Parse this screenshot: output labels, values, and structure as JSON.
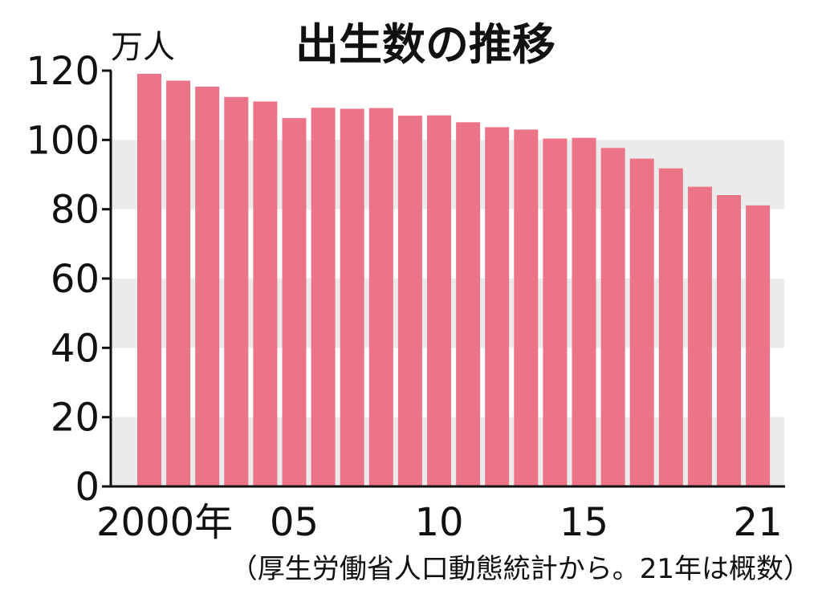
{
  "colors": {
    "bar": "#eb7489",
    "band": "#ebebeb",
    "axis": "#111111",
    "text": "#111111"
  },
  "chart_data": {
    "type": "bar",
    "title": "出生数の推移",
    "ylabel": "万人",
    "xlabel": "",
    "ylim": [
      0,
      120
    ],
    "yticks": [
      "0",
      "20",
      "40",
      "60",
      "80",
      "100",
      "120"
    ],
    "xtick_labels": [
      {
        "text": "2000年",
        "category": "2000"
      },
      {
        "text": "05",
        "category": "2005"
      },
      {
        "text": "10",
        "category": "2010"
      },
      {
        "text": "15",
        "category": "2015"
      },
      {
        "text": "21",
        "category": "2021"
      }
    ],
    "grid": "alternating horizontal bands",
    "categories": [
      "2000",
      "2001",
      "2002",
      "2003",
      "2004",
      "2005",
      "2006",
      "2007",
      "2008",
      "2009",
      "2010",
      "2011",
      "2012",
      "2013",
      "2014",
      "2015",
      "2016",
      "2017",
      "2018",
      "2019",
      "2020",
      "2021"
    ],
    "values": [
      119.1,
      117.1,
      115.4,
      112.4,
      111.1,
      106.3,
      109.3,
      109.0,
      109.2,
      107.0,
      107.1,
      105.1,
      103.7,
      103.0,
      100.4,
      100.6,
      97.7,
      94.6,
      91.8,
      86.5,
      84.1,
      81.1
    ],
    "source_note": "（厚生労働省人口動態統計から。21年は概数）"
  }
}
